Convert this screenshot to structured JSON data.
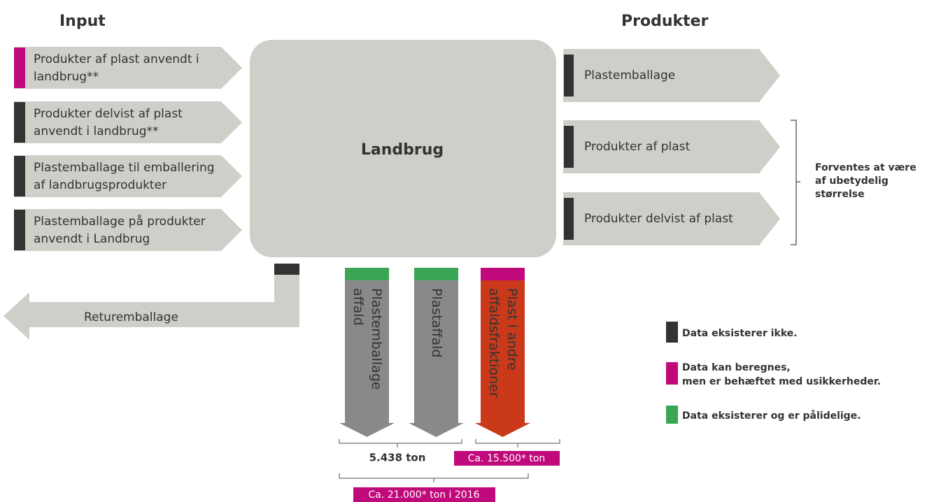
{
  "headings": {
    "input": "Input",
    "output": "Produkter"
  },
  "inputs": [
    {
      "lines": [
        "Produkter af plast anvendt i",
        "landbrug**"
      ],
      "color": "#c0097a"
    },
    {
      "lines": [
        "Produkter delvist af plast",
        "anvendt i landbrug**"
      ],
      "color": "#333333"
    },
    {
      "lines": [
        "Plastemballage til emballering",
        "af landbrugsprodukter"
      ],
      "color": "#333333"
    },
    {
      "lines": [
        "Plastemballage på produkter",
        "anvendt i Landbrug"
      ],
      "color": "#333333"
    }
  ],
  "center": "Landbrug",
  "outputs": [
    {
      "label": "Plastemballage",
      "color": "#333333"
    },
    {
      "label": "Produkter af plast",
      "color": "#333333"
    },
    {
      "label": "Produkter delvist af plast",
      "color": "#333333"
    }
  ],
  "note": [
    "Forventes at være",
    "af ubetydelig",
    "størrelse"
  ],
  "return": {
    "label": "Returemballage",
    "color": "#333333"
  },
  "waste": [
    {
      "lines": [
        "Plastemballage",
        "affald"
      ],
      "color": "#3aa655",
      "fill": "#898989"
    },
    {
      "lines": [
        "Plastaffald"
      ],
      "color": "#3aa655",
      "fill": "#898989"
    },
    {
      "lines": [
        "Plast i andre",
        "affaldsfraktioner"
      ],
      "color": "#c0097a",
      "fill": "#c9391a"
    }
  ],
  "amounts": {
    "first": "5.438 ton",
    "second": "Ca. 15.500* ton",
    "total": "Ca. 21.000* ton i 2016"
  },
  "legend": [
    {
      "label": "Data eksisterer ikke.",
      "color": "#333333"
    },
    {
      "lines": [
        "Data kan beregnes,",
        "men er behæftet med usikkerheder."
      ],
      "color": "#c0097a"
    },
    {
      "label": "Data eksisterer og er pålidelige.",
      "color": "#3aa655"
    }
  ]
}
